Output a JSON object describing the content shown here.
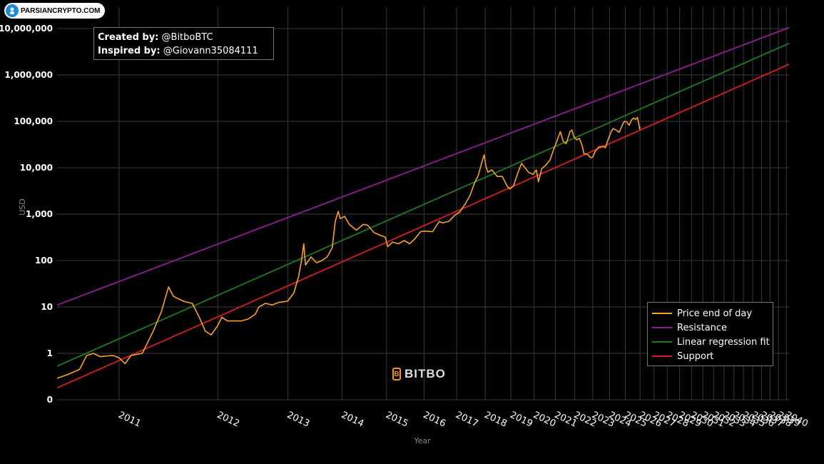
{
  "watermark": {
    "text": "PARSIANCRYPTO.COM",
    "icon": "parsiancrypto-logo-icon"
  },
  "credits": {
    "created_label": "Created by:",
    "created_value": "@BitboBTC",
    "inspired_label": "Inspired by:",
    "inspired_value": "@Giovann35084111"
  },
  "brand": {
    "text": "BITBO",
    "icon": "bitbo-logo-icon"
  },
  "colors": {
    "price": "#f7a229",
    "resistance": "#8e1f8e",
    "regression": "#1f7a1f",
    "support": "#d41f1f",
    "grid": "#3a3a3a",
    "background": "#000000"
  },
  "chart_data": {
    "type": "line",
    "title": "",
    "xlabel": "Year",
    "ylabel": "USD",
    "yscale": "log",
    "xscale": "log (days since genesis)",
    "ylim": [
      0.1,
      10000000
    ],
    "yticks": [
      {
        "value": 0.1,
        "label": "0"
      },
      {
        "value": 1,
        "label": "1"
      },
      {
        "value": 10,
        "label": "10"
      },
      {
        "value": 100,
        "label": "100"
      },
      {
        "value": 1000,
        "label": "1,000"
      },
      {
        "value": 10000,
        "label": "10,000"
      },
      {
        "value": 100000,
        "label": "100,000"
      },
      {
        "value": 1000000,
        "label": "1,000,000"
      },
      {
        "value": 10000000,
        "label": "10,000,000"
      }
    ],
    "xticks": [
      "2011",
      "2012",
      "2013",
      "2014",
      "2015",
      "2016",
      "2017",
      "2018",
      "2019",
      "2020",
      "2021",
      "2022",
      "2023",
      "2024",
      "2025",
      "2026",
      "2027",
      "2028",
      "2029",
      "2030",
      "2031",
      "2032",
      "2033",
      "2034",
      "2035",
      "2036",
      "2037",
      "2038",
      "2039",
      "2040"
    ],
    "xrange": [
      2010.55,
      2040.35
    ],
    "legend": [
      "Price end of day",
      "Resistance",
      "Linear regression fit",
      "Support"
    ],
    "legend_position": "bottom-right",
    "series": [
      {
        "name": "Price end of day",
        "points": [
          [
            2010.55,
            0.29
          ],
          [
            2010.62,
            0.35
          ],
          [
            2010.7,
            0.45
          ],
          [
            2010.75,
            0.9
          ],
          [
            2010.8,
            1.0
          ],
          [
            2010.85,
            0.85
          ],
          [
            2010.95,
            0.9
          ],
          [
            2011.0,
            0.8
          ],
          [
            2011.05,
            0.6
          ],
          [
            2011.1,
            0.9
          ],
          [
            2011.2,
            1.0
          ],
          [
            2011.3,
            3.0
          ],
          [
            2011.38,
            8.0
          ],
          [
            2011.45,
            27.0
          ],
          [
            2011.5,
            17.0
          ],
          [
            2011.55,
            15.0
          ],
          [
            2011.62,
            13.0
          ],
          [
            2011.7,
            12.0
          ],
          [
            2011.78,
            6.0
          ],
          [
            2011.85,
            3.0
          ],
          [
            2011.92,
            2.5
          ],
          [
            2012.0,
            4.0
          ],
          [
            2012.05,
            6.0
          ],
          [
            2012.12,
            5.0
          ],
          [
            2012.2,
            5.0
          ],
          [
            2012.3,
            5.0
          ],
          [
            2012.4,
            5.5
          ],
          [
            2012.5,
            7.0
          ],
          [
            2012.55,
            10.0
          ],
          [
            2012.65,
            12.0
          ],
          [
            2012.75,
            11.0
          ],
          [
            2012.85,
            12.5
          ],
          [
            2012.95,
            13.0
          ],
          [
            2013.0,
            13.5
          ],
          [
            2013.1,
            20.0
          ],
          [
            2013.18,
            45.0
          ],
          [
            2013.23,
            100.0
          ],
          [
            2013.27,
            230.0
          ],
          [
            2013.3,
            80.0
          ],
          [
            2013.4,
            120.0
          ],
          [
            2013.5,
            90.0
          ],
          [
            2013.6,
            100.0
          ],
          [
            2013.7,
            120.0
          ],
          [
            2013.8,
            190.0
          ],
          [
            2013.86,
            700.0
          ],
          [
            2013.92,
            1150.0
          ],
          [
            2013.96,
            800.0
          ],
          [
            2014.05,
            900.0
          ],
          [
            2014.15,
            600.0
          ],
          [
            2014.3,
            450.0
          ],
          [
            2014.45,
            600.0
          ],
          [
            2014.55,
            580.0
          ],
          [
            2014.7,
            400.0
          ],
          [
            2014.85,
            350.0
          ],
          [
            2014.97,
            320.0
          ],
          [
            2015.03,
            200.0
          ],
          [
            2015.15,
            250.0
          ],
          [
            2015.3,
            230.0
          ],
          [
            2015.45,
            270.0
          ],
          [
            2015.6,
            230.0
          ],
          [
            2015.75,
            300.0
          ],
          [
            2015.9,
            420.0
          ],
          [
            2016.0,
            430.0
          ],
          [
            2016.25,
            420.0
          ],
          [
            2016.45,
            700.0
          ],
          [
            2016.55,
            650.0
          ],
          [
            2016.75,
            700.0
          ],
          [
            2016.95,
            960.0
          ],
          [
            2017.1,
            1100.0
          ],
          [
            2017.3,
            1700.0
          ],
          [
            2017.45,
            2500.0
          ],
          [
            2017.6,
            4500.0
          ],
          [
            2017.75,
            7000.0
          ],
          [
            2017.9,
            15000.0
          ],
          [
            2017.96,
            19000.0
          ],
          [
            2018.02,
            11000.0
          ],
          [
            2018.1,
            8000.0
          ],
          [
            2018.25,
            9000.0
          ],
          [
            2018.45,
            6500.0
          ],
          [
            2018.65,
            6500.0
          ],
          [
            2018.85,
            4000.0
          ],
          [
            2018.95,
            3500.0
          ],
          [
            2019.1,
            4000.0
          ],
          [
            2019.3,
            8000.0
          ],
          [
            2019.45,
            12500.0
          ],
          [
            2019.6,
            10000.0
          ],
          [
            2019.75,
            8000.0
          ],
          [
            2019.95,
            7200.0
          ],
          [
            2020.1,
            9000.0
          ],
          [
            2020.2,
            5000.0
          ],
          [
            2020.35,
            9500.0
          ],
          [
            2020.55,
            11500.0
          ],
          [
            2020.75,
            15000.0
          ],
          [
            2020.92,
            25000.0
          ],
          [
            2021.05,
            35000.0
          ],
          [
            2021.25,
            60000.0
          ],
          [
            2021.4,
            37000.0
          ],
          [
            2021.55,
            33000.0
          ],
          [
            2021.75,
            60000.0
          ],
          [
            2021.85,
            65000.0
          ],
          [
            2021.95,
            47000.0
          ],
          [
            2022.1,
            40000.0
          ],
          [
            2022.25,
            43000.0
          ],
          [
            2022.4,
            30000.0
          ],
          [
            2022.5,
            20000.0
          ],
          [
            2022.7,
            19500.0
          ],
          [
            2022.88,
            16500.0
          ],
          [
            2023.0,
            17000.0
          ],
          [
            2023.15,
            23000.0
          ],
          [
            2023.35,
            28000.0
          ],
          [
            2023.6,
            29000.0
          ],
          [
            2023.75,
            27000.0
          ],
          [
            2023.9,
            40000.0
          ],
          [
            2024.1,
            60000.0
          ],
          [
            2024.22,
            70000.0
          ],
          [
            2024.4,
            65000.0
          ],
          [
            2024.6,
            58000.0
          ],
          [
            2024.85,
            90000.0
          ],
          [
            2024.95,
            100000.0
          ],
          [
            2025.1,
            97000.0
          ],
          [
            2025.25,
            82000.0
          ],
          [
            2025.4,
            105000.0
          ],
          [
            2025.55,
            118000.0
          ],
          [
            2025.7,
            110000.0
          ],
          [
            2025.82,
            122000.0
          ],
          [
            2025.9,
            90000.0
          ],
          [
            2025.97,
            68000.0
          ],
          [
            2026.0,
            75000.0
          ]
        ]
      },
      {
        "name": "Resistance",
        "points": [
          [
            2010.55,
            11.0
          ],
          [
            2040.35,
            10500000.0
          ]
        ]
      },
      {
        "name": "Linear regression fit",
        "points": [
          [
            2010.55,
            0.53
          ],
          [
            2040.35,
            4800000.0
          ]
        ]
      },
      {
        "name": "Support",
        "points": [
          [
            2010.55,
            0.18
          ],
          [
            2040.35,
            1700000.0
          ]
        ]
      }
    ]
  }
}
